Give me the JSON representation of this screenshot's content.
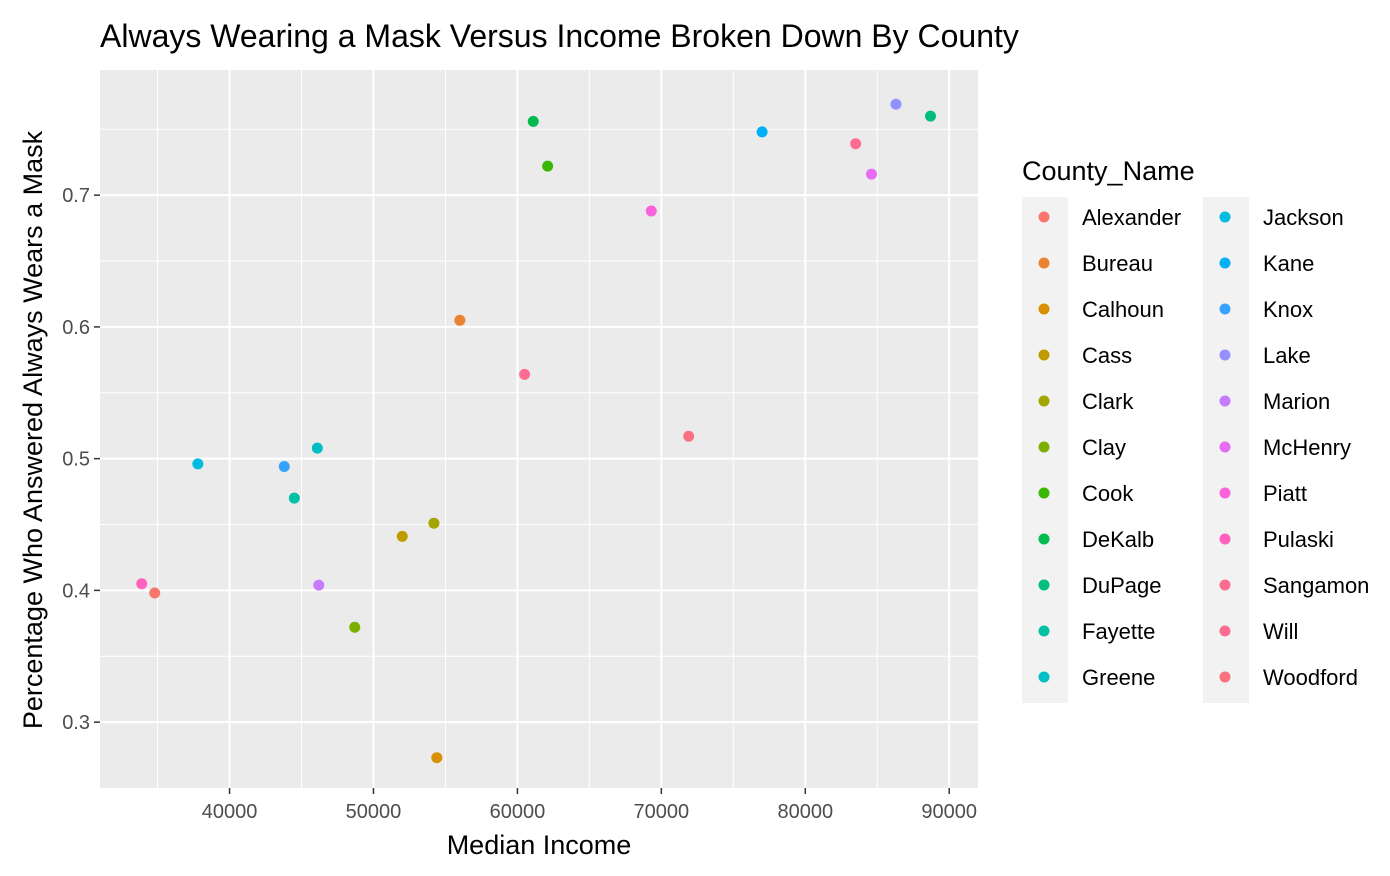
{
  "chart_data": {
    "type": "scatter",
    "title": "Always Wearing a Mask Versus Income Broken Down By County",
    "xlabel": "Median Income",
    "ylabel": "Percentage Who Answered Always Wears a Mask",
    "xlim": [
      31000,
      92000
    ],
    "ylim": [
      0.25,
      0.795
    ],
    "x_ticks": [
      40000,
      50000,
      60000,
      70000,
      80000,
      90000
    ],
    "x_tick_labels": [
      "40000",
      "50000",
      "60000",
      "70000",
      "80000",
      "90000"
    ],
    "y_ticks": [
      0.3,
      0.4,
      0.5,
      0.6,
      0.7
    ],
    "y_tick_labels": [
      "0.3",
      "0.4",
      "0.5",
      "0.6",
      "0.7"
    ],
    "grid": true,
    "legend": {
      "title": "County_Name",
      "placement": "right",
      "columns": 2
    },
    "series": [
      {
        "name": "Alexander",
        "color": "#F8766D",
        "x": 34800,
        "y": 0.398
      },
      {
        "name": "Bureau",
        "color": "#EA8331",
        "x": 56000,
        "y": 0.605
      },
      {
        "name": "Calhoun",
        "color": "#D89000",
        "x": 54400,
        "y": 0.273
      },
      {
        "name": "Cass",
        "color": "#C09B00",
        "x": 52000,
        "y": 0.441
      },
      {
        "name": "Clark",
        "color": "#A3A500",
        "x": 54200,
        "y": 0.451
      },
      {
        "name": "Clay",
        "color": "#7CAE00",
        "x": 48700,
        "y": 0.372
      },
      {
        "name": "Cook",
        "color": "#39B600",
        "x": 62100,
        "y": 0.722
      },
      {
        "name": "DeKalb",
        "color": "#00BB4E",
        "x": 61100,
        "y": 0.756
      },
      {
        "name": "DuPage",
        "color": "#00BF7D",
        "x": 88700,
        "y": 0.76
      },
      {
        "name": "Fayette",
        "color": "#00C1A3",
        "x": 44500,
        "y": 0.47
      },
      {
        "name": "Greene",
        "color": "#00BFC4",
        "x": 46100,
        "y": 0.508
      },
      {
        "name": "Jackson",
        "color": "#00BAE0",
        "x": 37800,
        "y": 0.496
      },
      {
        "name": "Kane",
        "color": "#00B0F6",
        "x": 77000,
        "y": 0.748
      },
      {
        "name": "Knox",
        "color": "#35A2FF",
        "x": 43800,
        "y": 0.494
      },
      {
        "name": "Lake",
        "color": "#9590FF",
        "x": 86300,
        "y": 0.769
      },
      {
        "name": "Marion",
        "color": "#C77CFF",
        "x": 46200,
        "y": 0.404
      },
      {
        "name": "McHenry",
        "color": "#E76BF3",
        "x": 84600,
        "y": 0.716
      },
      {
        "name": "Piatt",
        "color": "#FA62DB",
        "x": 69300,
        "y": 0.688
      },
      {
        "name": "Pulaski",
        "color": "#FF62BC",
        "x": 33900,
        "y": 0.405
      },
      {
        "name": "Sangamon",
        "color": "#FF6C91",
        "x": 60500,
        "y": 0.564
      },
      {
        "name": "Will",
        "color": "#FF6C91",
        "x": 83500,
        "y": 0.739
      },
      {
        "name": "Woodford",
        "color": "#FC717F",
        "x": 71900,
        "y": 0.517
      }
    ]
  }
}
